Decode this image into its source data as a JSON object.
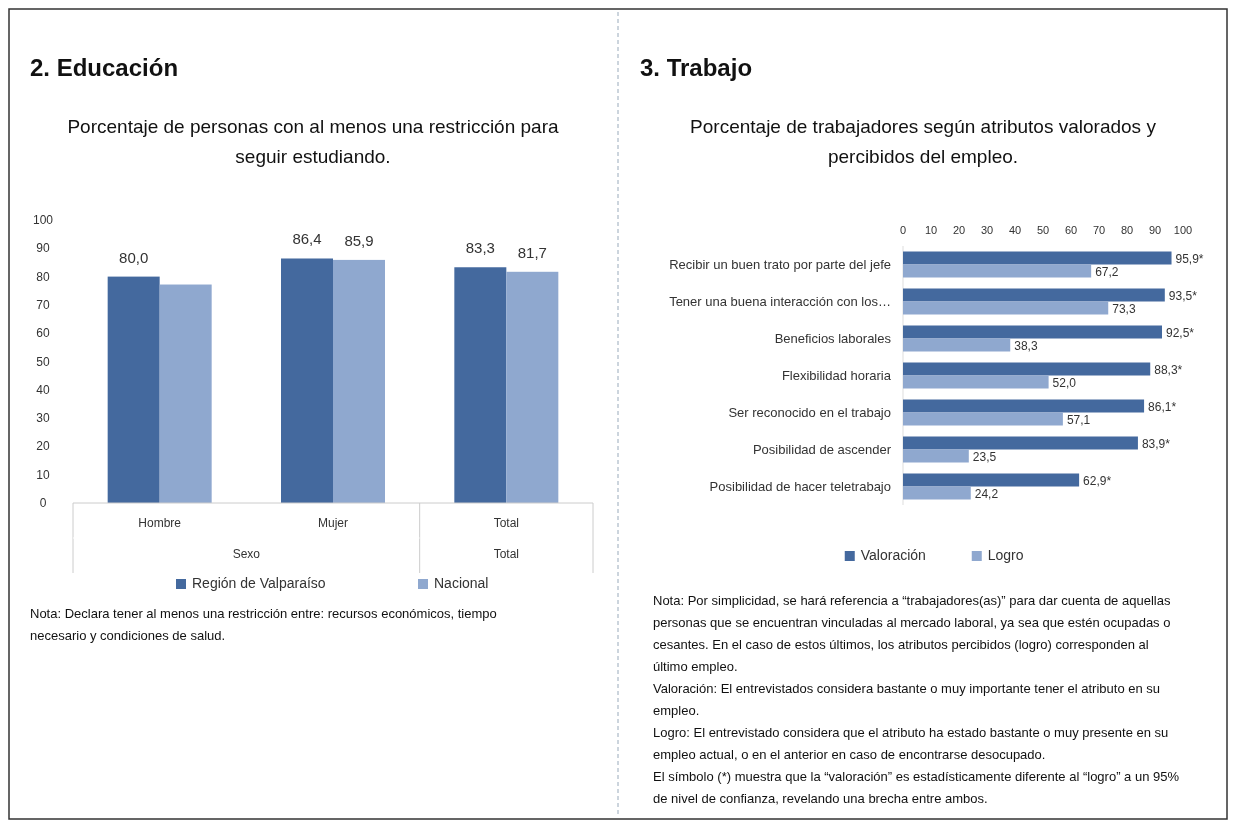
{
  "chart_data": [
    {
      "type": "bar",
      "title": "2.  Educación",
      "subtitle": "Porcentaje de personas con al menos una restricción para seguir estudiando.",
      "categories": [
        "Hombre",
        "Mujer",
        "Total"
      ],
      "series": [
        {
          "name": "Región de Valparaíso",
          "color": "#44699e",
          "values": [
            80.0,
            86.4,
            83.3
          ],
          "value_labels": [
            "80,0",
            "86,4",
            "83,3"
          ]
        },
        {
          "name": "Nacional",
          "color": "#8fa8cf",
          "values": [
            77.2,
            85.9,
            81.7
          ],
          "value_labels": [
            null,
            "85,9",
            "81,7"
          ]
        }
      ],
      "ylim": [
        0,
        100
      ],
      "yticks": [
        0,
        10,
        20,
        30,
        40,
        50,
        60,
        70,
        80,
        90,
        100
      ],
      "grid": false,
      "legend": "bottom",
      "annotations": [
        "Sexo",
        "Total",
        "Nota: Declara tener al menos una restricción entre: recursos económicos, tiempo necesario y condiciones  de salud."
      ]
    },
    {
      "type": "bar",
      "orientation": "horizontal",
      "title": "3.  Trabajo",
      "subtitle": "Porcentaje de trabajadores según atributos valorados y percibidos del empleo.",
      "categories": [
        "Recibir un buen trato por parte del jefe",
        "Tener una buena interacción con los…",
        "Beneficios laborales",
        "Flexibilidad horaria",
        "Ser reconocido  en el trabajo",
        "Posibilidad de ascender",
        "Posibilidad de hacer teletrabajo"
      ],
      "series": [
        {
          "name": "Valoración",
          "color": "#44699e",
          "values": [
            95.9,
            93.5,
            92.5,
            88.3,
            86.1,
            83.9,
            62.9
          ],
          "value_labels": [
            "95,9*",
            "93,5*",
            "92,5*",
            "88,3*",
            "86,1*",
            "83,9*",
            "62,9*"
          ]
        },
        {
          "name": "Logro",
          "color": "#8fa8cf",
          "values": [
            67.2,
            73.3,
            38.3,
            52.0,
            57.1,
            23.5,
            24.2
          ],
          "value_labels": [
            "67,2",
            "73,3",
            "38,3",
            "52,0",
            "57,1",
            "23,5",
            "24,2"
          ]
        }
      ],
      "xlim": [
        0,
        100
      ],
      "xticks": [
        0,
        10,
        20,
        30,
        40,
        50,
        60,
        70,
        80,
        90,
        100
      ],
      "grid": false,
      "legend": "bottom",
      "annotations": [
        "Nota: Por simplicidad, se hará referencia a “trabajadores(as)” para dar cuenta de aquellas personas que se encuentran vinculadas al mercado laboral, ya sea que estén ocupadas o cesantes. En el caso de estos últimos, los atributos percibidos  (logro) corresponden al último empleo.",
        "Valoración: El entrevistados considera bastante o muy importante tener el atributo en su empleo.",
        "Logro: El entrevistado considera que  el atributo ha estado bastante o muy presente en su empleo actual, o en el anterior en caso de encontrarse desocupado.",
        "El símbolo (*) muestra que la “valoración” es estadísticamente diferente al “logro” a un 95% de nivel de confianza, revelando una brecha entre ambos."
      ]
    }
  ]
}
